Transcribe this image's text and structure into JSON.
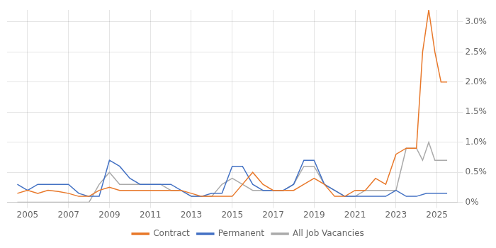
{
  "chart_data": {
    "type": "line",
    "xlim": [
      2004.0,
      2026.0
    ],
    "xticks": [
      2005,
      2007,
      2009,
      2011,
      2013,
      2015,
      2017,
      2019,
      2021,
      2023,
      2025
    ],
    "ylim": [
      0,
      0.032
    ],
    "yticks": [
      {
        "value": 0.0,
        "label": "0%"
      },
      {
        "value": 0.005,
        "label": "0.5%"
      },
      {
        "value": 0.01,
        "label": "1.0%"
      },
      {
        "value": 0.015,
        "label": "1.5%"
      },
      {
        "value": 0.02,
        "label": "2.0%"
      },
      {
        "value": 0.025,
        "label": "2.5%"
      },
      {
        "value": 0.03,
        "label": "3.0%"
      }
    ],
    "grid": true,
    "legend": "bottom",
    "series": [
      {
        "name": "Contract",
        "color": "#E8782A",
        "x": [
          2004.5,
          2005.0,
          2005.5,
          2006.0,
          2006.5,
          2007.0,
          2007.5,
          2008.0,
          2008.5,
          2009.0,
          2009.5,
          2010.0,
          2010.5,
          2011.0,
          2011.5,
          2012.0,
          2012.5,
          2013.0,
          2013.5,
          2014.0,
          2014.5,
          2015.0,
          2015.5,
          2016.0,
          2016.5,
          2017.0,
          2017.5,
          2018.0,
          2018.5,
          2019.0,
          2019.5,
          2020.0,
          2020.5,
          2021.0,
          2021.5,
          2022.0,
          2022.5,
          2023.0,
          2023.5,
          2024.0,
          2024.3,
          2024.6,
          2024.9,
          2025.2,
          2025.5
        ],
        "values": [
          0.0015,
          0.002,
          0.0015,
          0.002,
          0.0018,
          0.0015,
          0.001,
          0.001,
          0.002,
          0.0025,
          0.002,
          0.002,
          0.002,
          0.002,
          0.002,
          0.002,
          0.002,
          0.0015,
          0.001,
          0.001,
          0.001,
          0.001,
          0.003,
          0.005,
          0.003,
          0.002,
          0.002,
          0.002,
          0.003,
          0.004,
          0.003,
          0.001,
          0.001,
          0.002,
          0.002,
          0.004,
          0.003,
          0.008,
          0.009,
          0.009,
          0.025,
          0.032,
          0.025,
          0.02,
          0.02
        ]
      },
      {
        "name": "Permanent",
        "color": "#4472C4",
        "x": [
          2004.5,
          2005.0,
          2005.5,
          2006.0,
          2006.5,
          2007.0,
          2007.5,
          2008.0,
          2008.5,
          2009.0,
          2009.5,
          2010.0,
          2010.5,
          2011.0,
          2011.5,
          2012.0,
          2012.5,
          2013.0,
          2013.5,
          2014.0,
          2014.5,
          2015.0,
          2015.5,
          2016.0,
          2016.5,
          2017.0,
          2017.5,
          2018.0,
          2018.5,
          2019.0,
          2019.5,
          2020.0,
          2020.5,
          2021.0,
          2021.5,
          2022.0,
          2022.5,
          2023.0,
          2023.5,
          2024.0,
          2024.5,
          2025.0,
          2025.5
        ],
        "values": [
          0.003,
          0.002,
          0.003,
          0.003,
          0.003,
          0.003,
          0.0015,
          0.001,
          0.001,
          0.007,
          0.006,
          0.004,
          0.003,
          0.003,
          0.003,
          0.003,
          0.002,
          0.001,
          0.001,
          0.0015,
          0.0015,
          0.006,
          0.006,
          0.003,
          0.002,
          0.002,
          0.002,
          0.003,
          0.007,
          0.007,
          0.003,
          0.002,
          0.001,
          0.001,
          0.001,
          0.001,
          0.001,
          0.002,
          0.001,
          0.001,
          0.0015,
          0.0015,
          0.0015
        ]
      },
      {
        "name": "All Job Vacancies",
        "color": "#AAAAAA",
        "x": [
          2004.5,
          2005.0,
          2005.5,
          2006.0,
          2006.5,
          2007.0,
          2007.5,
          2008.0,
          2008.5,
          2009.0,
          2009.5,
          2010.0,
          2010.5,
          2011.0,
          2011.5,
          2012.0,
          2012.5,
          2013.0,
          2013.5,
          2014.0,
          2014.5,
          2015.0,
          2015.5,
          2016.0,
          2016.5,
          2017.0,
          2017.5,
          2018.0,
          2018.5,
          2019.0,
          2019.5,
          2020.0,
          2020.5,
          2021.0,
          2021.5,
          2022.0,
          2022.5,
          2023.0,
          2023.5,
          2024.0,
          2024.3,
          2024.6,
          2024.9,
          2025.2,
          2025.5
        ],
        "values": [
          0.0,
          0.0,
          0.0,
          0.0,
          0.0,
          0.0,
          0.0,
          0.0,
          0.003,
          0.005,
          0.003,
          0.003,
          0.003,
          0.003,
          0.003,
          0.002,
          0.002,
          0.001,
          0.001,
          0.001,
          0.003,
          0.004,
          0.003,
          0.002,
          0.002,
          0.002,
          0.002,
          0.003,
          0.006,
          0.006,
          0.003,
          0.002,
          0.001,
          0.001,
          0.002,
          0.002,
          0.002,
          0.002,
          0.009,
          0.009,
          0.007,
          0.01,
          0.007,
          0.007,
          0.007
        ]
      }
    ]
  }
}
